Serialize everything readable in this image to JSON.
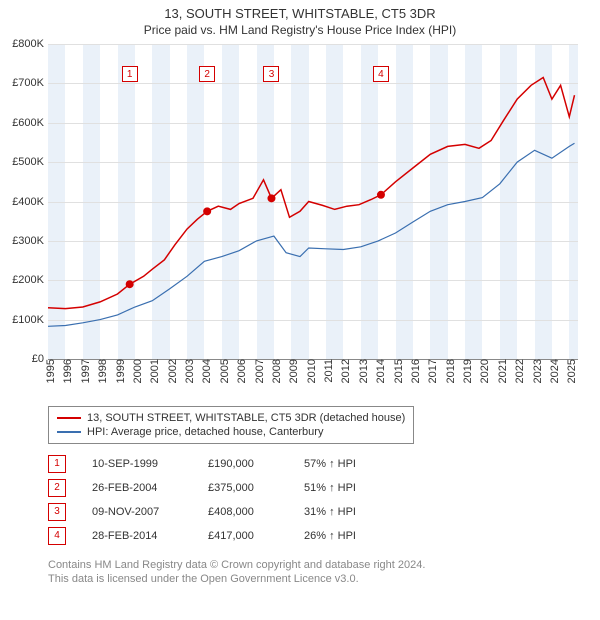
{
  "colors": {
    "series_property": "#d40000",
    "series_hpi": "#3a6fb0",
    "grid_major": "#bbbbbb",
    "grid_minor": "#e0e0e0",
    "band": "#eaf1f9",
    "ann_border": "#d40000",
    "axis_text": "#333333",
    "footnote": "#888888"
  },
  "title": {
    "main": "13, SOUTH STREET, WHITSTABLE, CT5 3DR",
    "sub": "Price paid vs. HM Land Registry's House Price Index (HPI)"
  },
  "chart": {
    "type": "line",
    "x_min": 1995,
    "x_max": 2025.5,
    "y_min": 0,
    "y_max": 800000,
    "y_ticks": [
      0,
      100000,
      200000,
      300000,
      400000,
      500000,
      600000,
      700000,
      800000
    ],
    "y_tick_labels": [
      "£0",
      "£100K",
      "£200K",
      "£300K",
      "£400K",
      "£500K",
      "£600K",
      "£700K",
      "£800K"
    ],
    "x_ticks": [
      1995,
      1996,
      1997,
      1998,
      1999,
      2000,
      2001,
      2002,
      2003,
      2004,
      2005,
      2006,
      2007,
      2008,
      2009,
      2010,
      2011,
      2012,
      2013,
      2014,
      2015,
      2016,
      2017,
      2018,
      2019,
      2020,
      2021,
      2022,
      2023,
      2024,
      2025
    ],
    "bands": [
      [
        1995,
        1996
      ],
      [
        1997,
        1998
      ],
      [
        1999,
        2000
      ],
      [
        2001,
        2002
      ],
      [
        2003,
        2004
      ],
      [
        2005,
        2006
      ],
      [
        2007,
        2008
      ],
      [
        2009,
        2010
      ],
      [
        2011,
        2012
      ],
      [
        2013,
        2014
      ],
      [
        2015,
        2016
      ],
      [
        2017,
        2018
      ],
      [
        2019,
        2020
      ],
      [
        2021,
        2022
      ],
      [
        2023,
        2024
      ],
      [
        2025,
        2025.5
      ]
    ],
    "series_property": {
      "label": "13, SOUTH STREET, WHITSTABLE, CT5 3DR (detached house)",
      "line_width": 1.5,
      "points": [
        [
          1995.0,
          130000
        ],
        [
          1996.0,
          128000
        ],
        [
          1997.0,
          132000
        ],
        [
          1998.0,
          145000
        ],
        [
          1999.0,
          165000
        ],
        [
          1999.7,
          190000
        ],
        [
          2000.5,
          210000
        ],
        [
          2001.0,
          228000
        ],
        [
          2001.7,
          252000
        ],
        [
          2002.3,
          290000
        ],
        [
          2003.0,
          330000
        ],
        [
          2003.6,
          355000
        ],
        [
          2004.16,
          375000
        ],
        [
          2004.8,
          388000
        ],
        [
          2005.5,
          380000
        ],
        [
          2006.0,
          395000
        ],
        [
          2006.8,
          408000
        ],
        [
          2007.4,
          455000
        ],
        [
          2007.86,
          408000
        ],
        [
          2008.4,
          430000
        ],
        [
          2008.9,
          360000
        ],
        [
          2009.5,
          375000
        ],
        [
          2010.0,
          400000
        ],
        [
          2010.8,
          390000
        ],
        [
          2011.5,
          380000
        ],
        [
          2012.2,
          388000
        ],
        [
          2012.9,
          392000
        ],
        [
          2013.6,
          405000
        ],
        [
          2014.16,
          417000
        ],
        [
          2015.0,
          450000
        ],
        [
          2016.0,
          485000
        ],
        [
          2017.0,
          520000
        ],
        [
          2018.0,
          540000
        ],
        [
          2019.0,
          545000
        ],
        [
          2019.8,
          535000
        ],
        [
          2020.5,
          555000
        ],
        [
          2021.2,
          605000
        ],
        [
          2022.0,
          660000
        ],
        [
          2022.8,
          695000
        ],
        [
          2023.5,
          715000
        ],
        [
          2024.0,
          660000
        ],
        [
          2024.5,
          695000
        ],
        [
          2025.0,
          615000
        ],
        [
          2025.3,
          670000
        ]
      ],
      "markers": [
        [
          1999.7,
          190000
        ],
        [
          2004.16,
          375000
        ],
        [
          2007.86,
          408000
        ],
        [
          2014.16,
          417000
        ]
      ]
    },
    "series_hpi": {
      "label": "HPI: Average price, detached house, Canterbury",
      "line_width": 1.2,
      "points": [
        [
          1995.0,
          83000
        ],
        [
          1996.0,
          85000
        ],
        [
          1997.0,
          92000
        ],
        [
          1998.0,
          100000
        ],
        [
          1999.0,
          112000
        ],
        [
          2000.0,
          132000
        ],
        [
          2001.0,
          148000
        ],
        [
          2002.0,
          178000
        ],
        [
          2003.0,
          210000
        ],
        [
          2004.0,
          248000
        ],
        [
          2005.0,
          260000
        ],
        [
          2006.0,
          275000
        ],
        [
          2007.0,
          300000
        ],
        [
          2008.0,
          312000
        ],
        [
          2008.7,
          270000
        ],
        [
          2009.5,
          260000
        ],
        [
          2010.0,
          282000
        ],
        [
          2011.0,
          280000
        ],
        [
          2012.0,
          278000
        ],
        [
          2013.0,
          285000
        ],
        [
          2014.0,
          300000
        ],
        [
          2015.0,
          320000
        ],
        [
          2016.0,
          348000
        ],
        [
          2017.0,
          375000
        ],
        [
          2018.0,
          392000
        ],
        [
          2019.0,
          400000
        ],
        [
          2020.0,
          410000
        ],
        [
          2021.0,
          445000
        ],
        [
          2022.0,
          500000
        ],
        [
          2023.0,
          530000
        ],
        [
          2024.0,
          510000
        ],
        [
          2025.0,
          540000
        ],
        [
          2025.3,
          548000
        ]
      ]
    },
    "annotations": [
      {
        "num": "1",
        "x": 1999.7,
        "top_y": 745000
      },
      {
        "num": "2",
        "x": 2004.16,
        "top_y": 745000
      },
      {
        "num": "3",
        "x": 2007.86,
        "top_y": 745000
      },
      {
        "num": "4",
        "x": 2014.16,
        "top_y": 745000
      }
    ]
  },
  "legend": {
    "rows": [
      {
        "swatch": "series_property",
        "label_path": "chart.series_property.label"
      },
      {
        "swatch": "series_hpi",
        "label_path": "chart.series_hpi.label"
      }
    ]
  },
  "sales": [
    {
      "num": "1",
      "date": "10-SEP-1999",
      "price": "£190,000",
      "pct": "57% ↑ HPI"
    },
    {
      "num": "2",
      "date": "26-FEB-2004",
      "price": "£375,000",
      "pct": "51% ↑ HPI"
    },
    {
      "num": "3",
      "date": "09-NOV-2007",
      "price": "£408,000",
      "pct": "31% ↑ HPI"
    },
    {
      "num": "4",
      "date": "28-FEB-2014",
      "price": "£417,000",
      "pct": "26% ↑ HPI"
    }
  ],
  "footnote": {
    "line1": "Contains HM Land Registry data © Crown copyright and database right 2024.",
    "line2": "This data is licensed under the Open Government Licence v3.0."
  }
}
